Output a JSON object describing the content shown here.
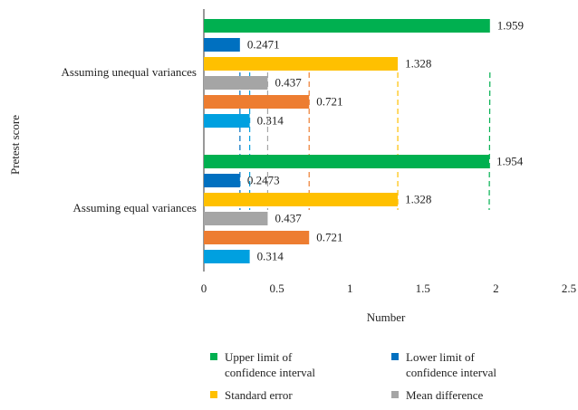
{
  "chart_data": {
    "type": "hbar",
    "categories": [
      "Assuming unequal variances",
      "Assuming equal variances"
    ],
    "series": [
      {
        "name": "Upper limit of confidence interval",
        "color": "#00b050",
        "values": [
          1.959,
          1.954
        ]
      },
      {
        "name": "Lower limit of confidence interval",
        "color": "#0070c0",
        "values": [
          0.2471,
          0.2473
        ]
      },
      {
        "name": "Standard error",
        "color": "#ffc000",
        "values": [
          1.328,
          1.328
        ]
      },
      {
        "name": "Mean difference",
        "color": "#a5a5a5",
        "values": [
          0.437,
          0.437
        ]
      },
      {
        "color": "#ed7d31",
        "values": [
          0.721,
          0.721
        ]
      },
      {
        "color": "#00a0e0",
        "values": [
          0.314,
          0.314
        ]
      }
    ],
    "xlabel": "Number",
    "ylabel": "Pretest score",
    "xlim": [
      0,
      2.5
    ],
    "xticks": [
      0,
      0.5,
      1,
      1.5,
      2,
      2.5
    ]
  }
}
